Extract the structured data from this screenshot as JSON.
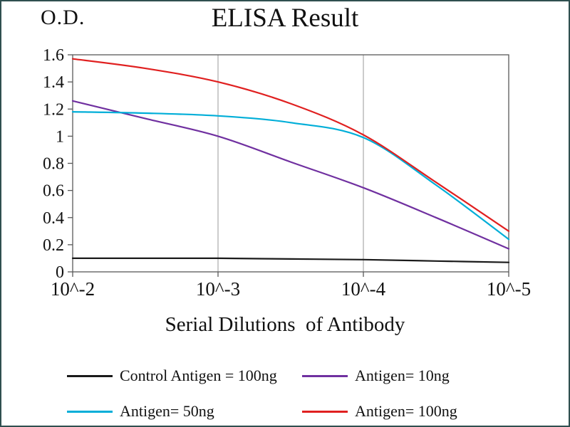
{
  "frame": {
    "border_color": "#2f4f4f"
  },
  "chart_data": {
    "type": "line",
    "title": "ELISA Result",
    "ylabel": "O.D.",
    "xlabel": "Serial Dilutions  of Antibody",
    "x_tick_labels": [
      "10^-2",
      "10^-3",
      "10^-4",
      "10^-5"
    ],
    "x_unit": "decades of serial dilution from 10^-2 to 10^-5",
    "x_decades": [
      0,
      0.5,
      1,
      1.5,
      2,
      2.5,
      3
    ],
    "y_ticks": [
      0,
      0.2,
      0.4,
      0.6,
      0.8,
      1,
      1.2,
      1.4,
      1.6
    ],
    "y_tick_labels": [
      "0",
      "0.2",
      "0.4",
      "0.6",
      "0.8",
      "1",
      "1.2",
      "1.4",
      "1.6"
    ],
    "ylim": [
      0,
      1.6
    ],
    "grid": "vertical-only",
    "legend_position": "bottom",
    "colors": {
      "axis": "#595959",
      "grid": "#9a9a9a",
      "text": "#111111"
    },
    "series": [
      {
        "key": "control-antigen-100ng",
        "name": "Control Antigen = 100ng",
        "color": "#1a1a1a",
        "values": [
          0.1,
          0.1,
          0.1,
          0.095,
          0.09,
          0.08,
          0.07
        ]
      },
      {
        "key": "antigen-10ng",
        "name": "Antigen= 10ng",
        "color": "#7030a0",
        "values": [
          1.26,
          1.13,
          1.0,
          0.81,
          0.62,
          0.4,
          0.17
        ]
      },
      {
        "key": "antigen-50ng",
        "name": "Antigen= 50ng",
        "color": "#00aed8",
        "values": [
          1.18,
          1.17,
          1.15,
          1.1,
          0.99,
          0.64,
          0.24
        ]
      },
      {
        "key": "antigen-100ng",
        "name": "Antigen= 100ng",
        "color": "#e02020",
        "values": [
          1.57,
          1.5,
          1.4,
          1.24,
          1.01,
          0.66,
          0.3
        ]
      }
    ]
  }
}
